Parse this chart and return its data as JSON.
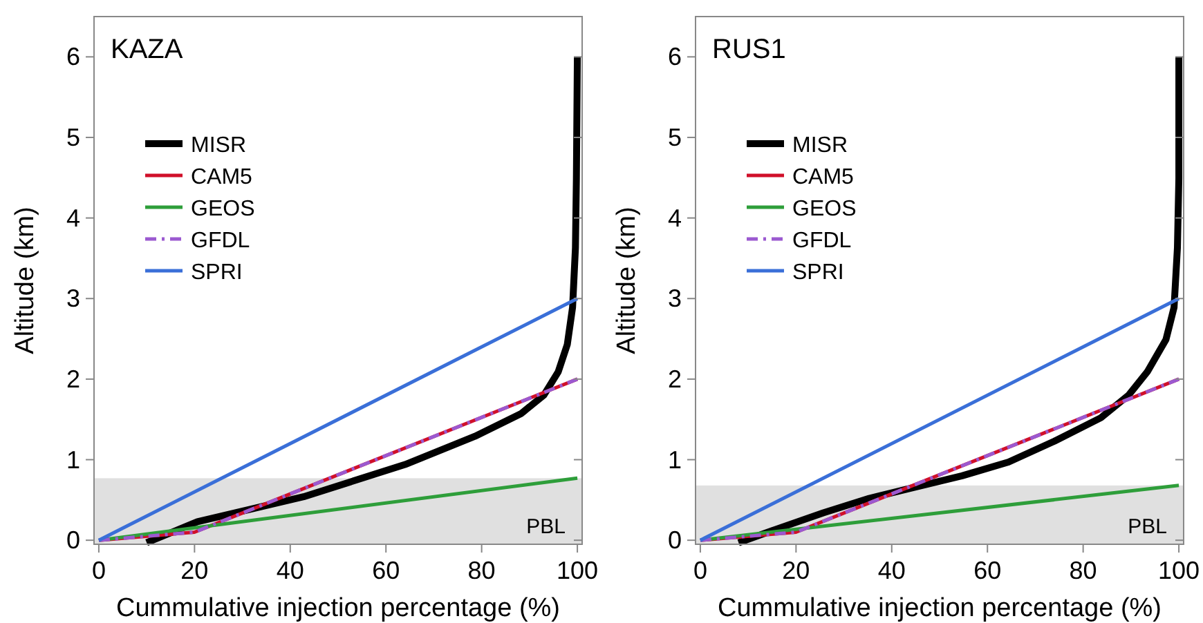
{
  "chart_data": [
    {
      "type": "line",
      "title": "KAZA",
      "xlabel": "Cummulative injection percentage (%)",
      "ylabel": "Altitude (km)",
      "xlim": [
        -1,
        101
      ],
      "ylim": [
        -0.05,
        6.5
      ],
      "xticks": [
        0,
        20,
        40,
        60,
        80,
        100
      ],
      "yticks": [
        0,
        1,
        2,
        3,
        4,
        5,
        6
      ],
      "grid": false,
      "legend": "top left",
      "marker": "none",
      "bands": [
        {
          "axis": "y",
          "from": -0.05,
          "to": 0.77,
          "label": "PBL",
          "color": "#e0e0e0"
        }
      ],
      "series": [
        {
          "name": "MISR",
          "color": "#000000",
          "line_style": "solid",
          "x": [
            10,
            20.6,
            42.8,
            64,
            78.6,
            88.2,
            93,
            96,
            97.9,
            99,
            99.6,
            99.8,
            100
          ],
          "values": [
            -0.03,
            0.23,
            0.54,
            0.94,
            1.29,
            1.57,
            1.8,
            2.09,
            2.43,
            2.89,
            3.63,
            4.49,
            6
          ]
        },
        {
          "name": "CAM5",
          "color": "#d0102a",
          "line_style": "solid",
          "x": [
            0,
            20,
            100
          ],
          "values": [
            0,
            0.1,
            2
          ]
        },
        {
          "name": "GEOS",
          "color": "#2e9e3a",
          "line_style": "solid",
          "x": [
            0,
            100
          ],
          "values": [
            0,
            0.77
          ]
        },
        {
          "name": "GFDL",
          "color": "#9b59d0",
          "line_style": "dashed",
          "x": [
            0,
            20,
            100
          ],
          "values": [
            0,
            0.1,
            2
          ]
        },
        {
          "name": "SPRI",
          "color": "#3a6fd8",
          "line_style": "solid",
          "x": [
            0,
            100
          ],
          "values": [
            0,
            3
          ]
        }
      ]
    },
    {
      "type": "line",
      "title": "RUS1",
      "xlabel": "Cummulative injection percentage (%)",
      "ylabel": "Altitude (km)",
      "xlim": [
        -1,
        101
      ],
      "ylim": [
        -0.05,
        6.5
      ],
      "xticks": [
        0,
        20,
        40,
        60,
        80,
        100
      ],
      "yticks": [
        0,
        1,
        2,
        3,
        4,
        5,
        6
      ],
      "grid": false,
      "legend": "top left",
      "marker": "none",
      "bands": [
        {
          "axis": "y",
          "from": -0.05,
          "to": 0.68,
          "label": "PBL",
          "color": "#e0e0e0"
        }
      ],
      "series": [
        {
          "name": "MISR",
          "color": "#000000",
          "line_style": "solid",
          "x": [
            8,
            16,
            25.7,
            35.3,
            45,
            54.7,
            64.4,
            74,
            83.7,
            89.5,
            93.4,
            97.3,
            99,
            99.7,
            100,
            100
          ],
          "values": [
            -0.03,
            0.14,
            0.34,
            0.52,
            0.66,
            0.8,
            0.97,
            1.23,
            1.52,
            1.8,
            2.09,
            2.49,
            2.89,
            3.63,
            4.49,
            6
          ]
        },
        {
          "name": "CAM5",
          "color": "#d0102a",
          "line_style": "solid",
          "x": [
            0,
            20,
            100
          ],
          "values": [
            0,
            0.1,
            2
          ]
        },
        {
          "name": "GEOS",
          "color": "#2e9e3a",
          "line_style": "solid",
          "x": [
            0,
            100
          ],
          "values": [
            0,
            0.68
          ]
        },
        {
          "name": "GFDL",
          "color": "#9b59d0",
          "line_style": "dashed",
          "x": [
            0,
            20,
            100
          ],
          "values": [
            0,
            0.1,
            2
          ]
        },
        {
          "name": "SPRI",
          "color": "#3a6fd8",
          "line_style": "solid",
          "x": [
            0,
            100
          ],
          "values": [
            0,
            3
          ]
        }
      ]
    }
  ]
}
